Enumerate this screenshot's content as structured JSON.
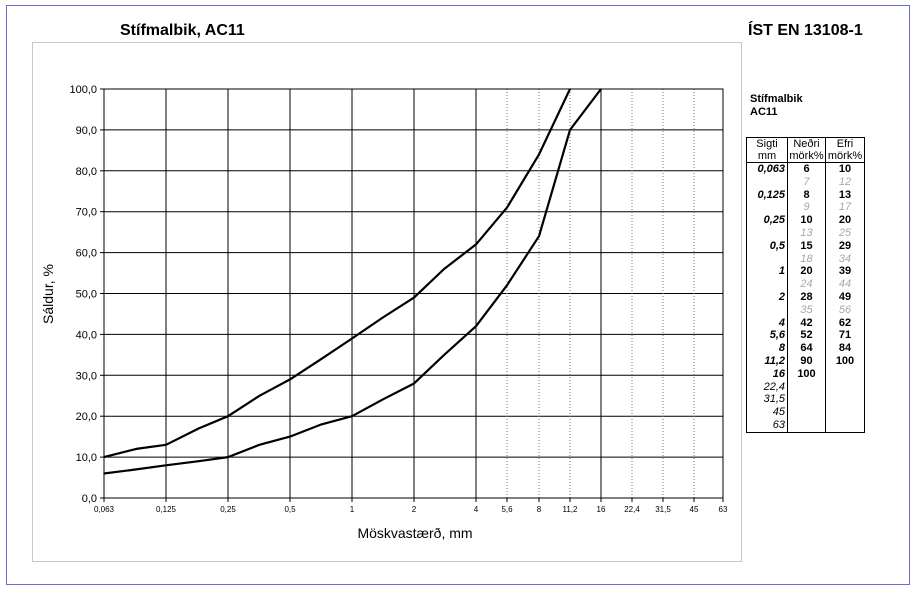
{
  "title": "Stífmalbik, AC11",
  "standard": "ÍST EN 13108-1",
  "chart_data": {
    "type": "line",
    "xlabel": "Möskvastærð, mm",
    "ylabel": "Sáldur, %",
    "x_ticks": [
      "0,063",
      "0,125",
      "0,25",
      "0,5",
      "1",
      "2",
      "4",
      "5,6",
      "8",
      "11,2",
      "16",
      "22,4",
      "31,5",
      "45",
      "63"
    ],
    "y_ticks": [
      "0,0",
      "10,0",
      "20,0",
      "30,0",
      "40,0",
      "50,0",
      "60,0",
      "70,0",
      "80,0",
      "90,0",
      "100,0"
    ],
    "ylim": [
      0,
      100
    ],
    "x_scale": "log (sieve positions)",
    "grid": true,
    "series": [
      {
        "x": [
          0.063,
          0.09,
          0.125,
          0.18,
          0.25,
          0.355,
          0.5,
          0.71,
          1,
          1.4,
          2,
          2.8,
          4,
          5.6,
          8,
          11.2,
          16
        ],
        "values": [
          6,
          7,
          8,
          9,
          10,
          13,
          15,
          18,
          20,
          24,
          28,
          35,
          42,
          52,
          64,
          90,
          100
        ]
      },
      {
        "x": [
          0.063,
          0.09,
          0.125,
          0.18,
          0.25,
          0.355,
          0.5,
          0.71,
          1,
          1.4,
          2,
          2.8,
          4,
          5.6,
          8,
          11.2
        ],
        "values": [
          10,
          12,
          13,
          17,
          20,
          25,
          29,
          34,
          39,
          44,
          49,
          56,
          62,
          71,
          84,
          100
        ]
      }
    ]
  },
  "table": {
    "title_line1": "Stífmalbik",
    "title_line2": "AC11",
    "header_sieve": [
      "Sigti",
      "mm"
    ],
    "header_lower": [
      "Neðri",
      "mörk%"
    ],
    "header_upper": [
      "Efri",
      "mörk%"
    ],
    "rows": [
      {
        "sieve": "0,063",
        "lower": "6",
        "upper": "10",
        "kind": "main"
      },
      {
        "sieve": "",
        "lower": "7",
        "upper": "12",
        "kind": "inter"
      },
      {
        "sieve": "0,125",
        "lower": "8",
        "upper": "13",
        "kind": "main"
      },
      {
        "sieve": "",
        "lower": "9",
        "upper": "17",
        "kind": "inter"
      },
      {
        "sieve": "0,25",
        "lower": "10",
        "upper": "20",
        "kind": "main"
      },
      {
        "sieve": "",
        "lower": "13",
        "upper": "25",
        "kind": "inter"
      },
      {
        "sieve": "0,5",
        "lower": "15",
        "upper": "29",
        "kind": "main"
      },
      {
        "sieve": "",
        "lower": "18",
        "upper": "34",
        "kind": "inter"
      },
      {
        "sieve": "1",
        "lower": "20",
        "upper": "39",
        "kind": "main"
      },
      {
        "sieve": "",
        "lower": "24",
        "upper": "44",
        "kind": "inter"
      },
      {
        "sieve": "2",
        "lower": "28",
        "upper": "49",
        "kind": "main"
      },
      {
        "sieve": "",
        "lower": "35",
        "upper": "56",
        "kind": "inter"
      },
      {
        "sieve": "4",
        "lower": "42",
        "upper": "62",
        "kind": "main"
      },
      {
        "sieve": "5,6",
        "lower": "52",
        "upper": "71",
        "kind": "main"
      },
      {
        "sieve": "8",
        "lower": "64",
        "upper": "84",
        "kind": "main"
      },
      {
        "sieve": "11,2",
        "lower": "90",
        "upper": "100",
        "kind": "main"
      },
      {
        "sieve": "16",
        "lower": "100",
        "upper": "",
        "kind": "main"
      },
      {
        "sieve": "22,4",
        "lower": "",
        "upper": "",
        "kind": "plain"
      },
      {
        "sieve": "31,5",
        "lower": "",
        "upper": "",
        "kind": "plain"
      },
      {
        "sieve": "45",
        "lower": "",
        "upper": "",
        "kind": "plain"
      },
      {
        "sieve": "63",
        "lower": "",
        "upper": "",
        "kind": "plain"
      }
    ]
  }
}
